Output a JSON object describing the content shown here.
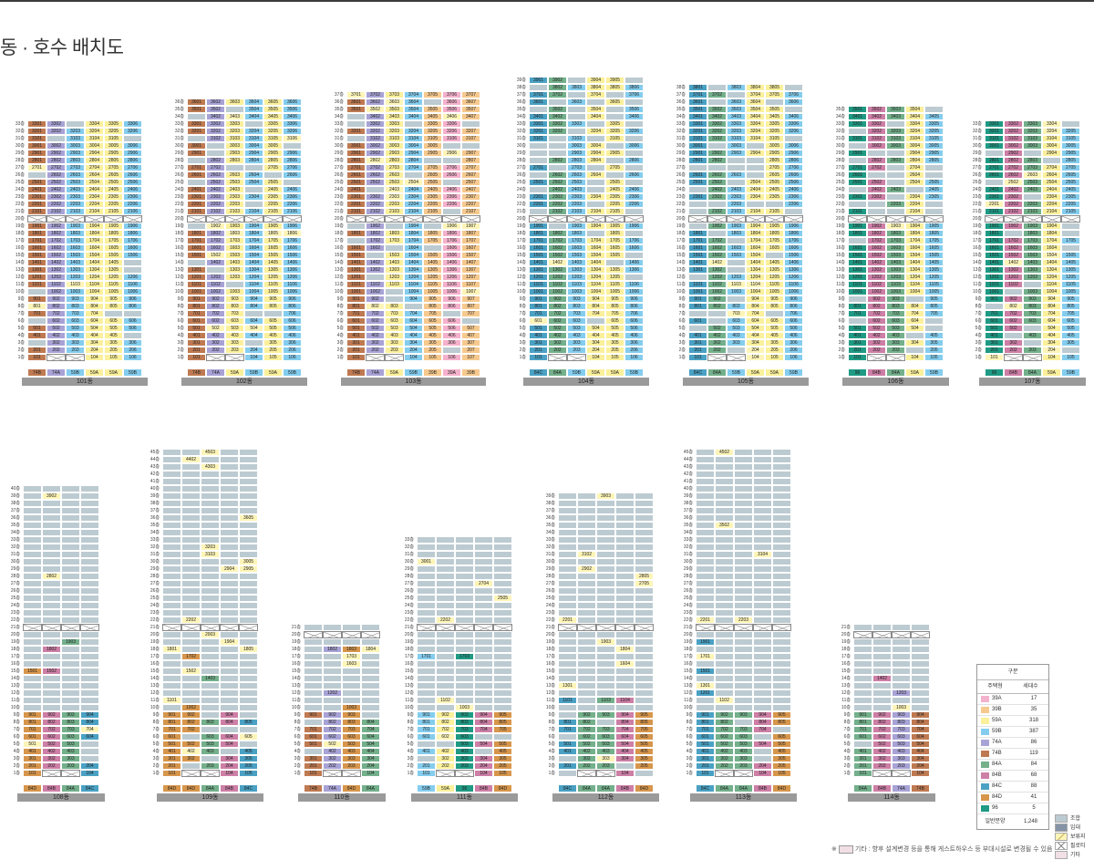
{
  "page": {
    "title": "동 · 호수 배치도"
  },
  "unit_colors": {
    "39A": "#f4b1cc",
    "39B": "#f6c98e",
    "59A": "#fbf09b",
    "59B": "#84cdee",
    "74A": "#a8a3d6",
    "74B": "#bf7a52",
    "84A": "#73b08b",
    "84B": "#cd7fa6",
    "84C": "#4aa1c4",
    "84D": "#d7964c",
    "96": "#1f9a84"
  },
  "status_colors": {
    "조합": "#bccbd1",
    "임대": "#8593a5",
    "보류지": "#fdf5b8",
    "일반분양": "#ffffff",
    "기타": "#f1dfe6"
  },
  "buildings": [
    {
      "name": "101동",
      "code": "101",
      "types": [
        "74B",
        "74A",
        "59B",
        "59A",
        "59A",
        "59B"
      ],
      "floors": 33,
      "gap": 20
    },
    {
      "name": "102동",
      "code": "102",
      "types": [
        "74B",
        "74A",
        "59A",
        "59B",
        "59A",
        "59B"
      ],
      "floors": 36,
      "gap": 20
    },
    {
      "name": "103동",
      "code": "103",
      "types": [
        "74B",
        "74A",
        "59A",
        "59B",
        "39B",
        "39A",
        "39B"
      ],
      "floors": 37,
      "gap": 20
    },
    {
      "name": "104동",
      "code": "104",
      "types": [
        "84C",
        "84A",
        "59B",
        "59A",
        "59A",
        "59B"
      ],
      "floors": 39,
      "gap": 20
    },
    {
      "name": "105동",
      "code": "105",
      "types": [
        "84C",
        "84A",
        "59B",
        "59A",
        "59A",
        "59B"
      ],
      "floors": 38,
      "gap": 20
    },
    {
      "name": "106동",
      "code": "106",
      "types": [
        "96",
        "84B",
        "84A",
        "59A",
        "59B"
      ],
      "floors": 35,
      "gap": 20
    },
    {
      "name": "107동",
      "code": "107",
      "types": [
        "96",
        "84B",
        "84A",
        "59A",
        "59B"
      ],
      "floors": 33,
      "gap": 20
    },
    {
      "name": "108동",
      "code": "108",
      "types": [
        "84D",
        "84B",
        "84A",
        "84C"
      ],
      "floors": 40,
      "gap": 21
    },
    {
      "name": "109동",
      "code": "109",
      "types": [
        "84D",
        "84D",
        "84A",
        "84B",
        "84C"
      ],
      "floors": 45,
      "gap": 21
    },
    {
      "name": "110동",
      "code": "110",
      "types": [
        "74B",
        "74A",
        "84D",
        "84A"
      ],
      "floors": 21,
      "gap": 20
    },
    {
      "name": "111동",
      "code": "111",
      "types": [
        "59B",
        "59A",
        "96",
        "84B",
        "84D"
      ],
      "floors": 33,
      "gap": 21
    },
    {
      "name": "112동",
      "code": "112",
      "types": [
        "84C",
        "84A",
        "84A",
        "84B",
        "84D"
      ],
      "floors": 39,
      "gap": 21
    },
    {
      "name": "113동",
      "code": "113",
      "types": [
        "84C",
        "84A",
        "84A",
        "84B",
        "84D"
      ],
      "floors": 45,
      "gap": 21
    },
    {
      "name": "114동",
      "code": "114",
      "types": [
        "84A",
        "84B",
        "74A",
        "74B"
      ],
      "floors": 21,
      "gap": 20
    }
  ],
  "floor_suffix": "층",
  "legend": {
    "header": "구분",
    "col_type": "주택형",
    "col_count": "세대수",
    "rows": [
      {
        "type": "39A",
        "count": "17"
      },
      {
        "type": "39B",
        "count": "35"
      },
      {
        "type": "59A",
        "count": "318"
      },
      {
        "type": "59B",
        "count": "387"
      },
      {
        "type": "74A",
        "count": "86"
      },
      {
        "type": "74B",
        "count": "119"
      },
      {
        "type": "84A",
        "count": "84"
      },
      {
        "type": "84B",
        "count": "68"
      },
      {
        "type": "84C",
        "count": "88"
      },
      {
        "type": "84D",
        "count": "41"
      },
      {
        "type": "96",
        "count": "5"
      }
    ],
    "total_label": "일반분양",
    "total_count": "1,248"
  },
  "kinds": [
    {
      "label": "조합"
    },
    {
      "label": "임대"
    },
    {
      "label": "보류지"
    },
    {
      "label": "필로티"
    },
    {
      "label": "기타"
    }
  ],
  "note": {
    "prefix": "※",
    "text": "기타 : 향후 설계변경 등을 통해 게스트하우스 등 부대시설로 변경될 수 있음"
  },
  "special_labels": {
    "daycare": "어린이집",
    "community": "관리사무소",
    "senior": "경로당"
  }
}
